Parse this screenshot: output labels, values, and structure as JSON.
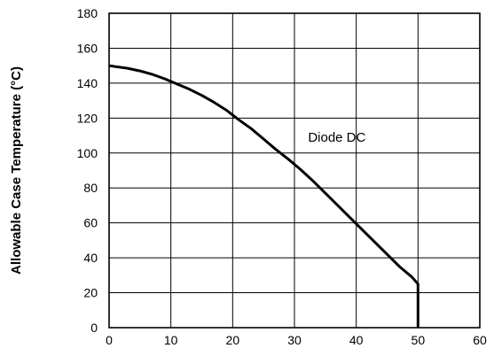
{
  "chart_data": {
    "type": "line",
    "title": "",
    "xlabel": "",
    "ylabel": "Allowable Case Temperature (°C)",
    "xlim": [
      0,
      60
    ],
    "ylim": [
      0,
      180
    ],
    "x_ticks": [
      "0",
      "10",
      "20",
      "30",
      "40",
      "50",
      "60"
    ],
    "y_ticks": [
      "0",
      "20",
      "40",
      "60",
      "80",
      "100",
      "120",
      "140",
      "160",
      "180"
    ],
    "grid": true,
    "legend": "none",
    "annotation": "Diode DC",
    "line_color": "#000000",
    "series": [
      {
        "x": [
          0,
          1,
          3,
          5,
          7,
          9,
          11,
          13,
          15,
          17,
          19,
          21,
          23,
          25,
          27,
          29,
          31,
          33,
          35,
          37,
          39,
          41,
          43,
          45,
          47,
          49,
          50,
          50
        ],
        "y": [
          150,
          149.5,
          148.5,
          147,
          145,
          142.5,
          139.5,
          136.5,
          133,
          129,
          124.5,
          119,
          114,
          108,
          102,
          96.5,
          90.5,
          84,
          77,
          70,
          63,
          56,
          49,
          42,
          35,
          29,
          25,
          0
        ]
      }
    ]
  }
}
